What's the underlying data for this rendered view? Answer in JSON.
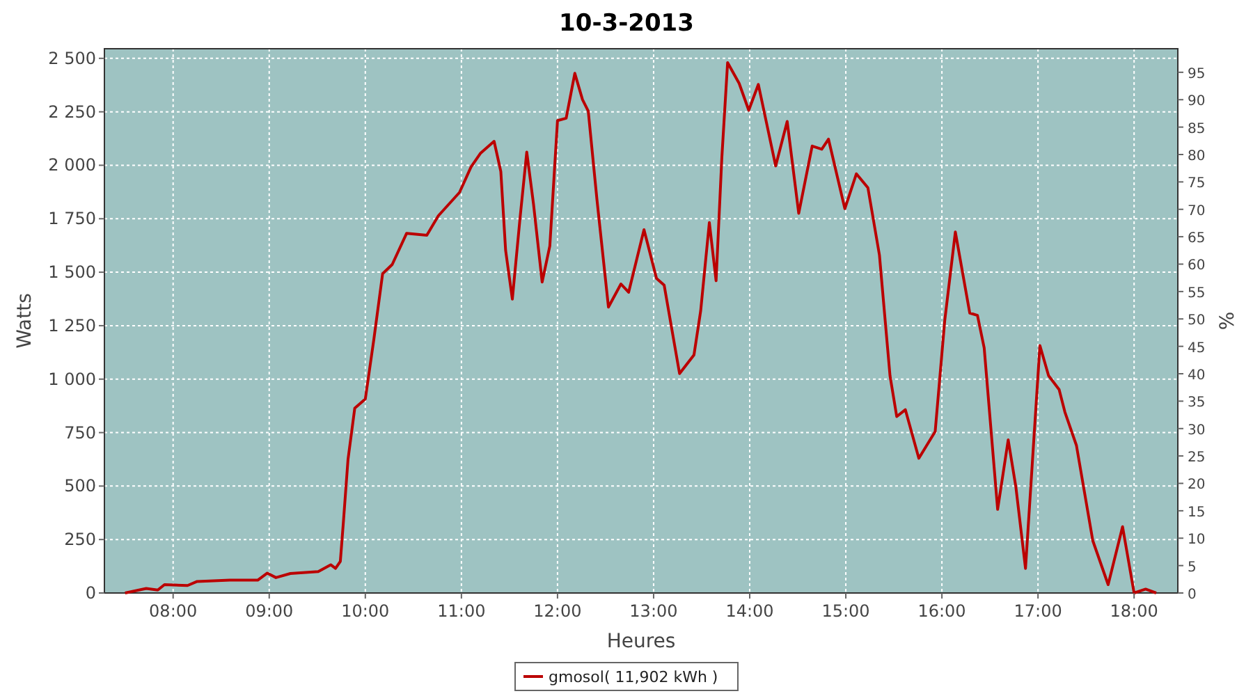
{
  "chart_data": {
    "type": "line",
    "title": "10-3-2013",
    "xlabel": "Heures",
    "ylabel": "Watts",
    "y2label": "%",
    "xlim": [
      7.285,
      18.455
    ],
    "xticks": [
      {
        "value": 8,
        "label": "08:00"
      },
      {
        "value": 9,
        "label": "09:00"
      },
      {
        "value": 10,
        "label": "10:00"
      },
      {
        "value": 11,
        "label": "11:00"
      },
      {
        "value": 12,
        "label": "12:00"
      },
      {
        "value": 13,
        "label": "13:00"
      },
      {
        "value": 14,
        "label": "14:00"
      },
      {
        "value": 15,
        "label": "15:00"
      },
      {
        "value": 16,
        "label": "16:00"
      },
      {
        "value": 17,
        "label": "17:00"
      },
      {
        "value": 18,
        "label": "18:00"
      }
    ],
    "ylim": [
      0,
      2545
    ],
    "yticks": [
      0,
      250,
      500,
      750,
      {
        "value": 1000,
        "label": "1 000"
      },
      {
        "value": 1250,
        "label": "1 250"
      },
      {
        "value": 1500,
        "label": "1 500"
      },
      {
        "value": 1750,
        "label": "1 750"
      },
      {
        "value": 2000,
        "label": "2 000"
      },
      {
        "value": 2250,
        "label": "2 250"
      },
      {
        "value": 2500,
        "label": "2 500"
      }
    ],
    "y2lim": [
      0,
      99.3
    ],
    "y2ticks": [
      0,
      5,
      10,
      15,
      20,
      25,
      30,
      35,
      40,
      45,
      50,
      55,
      60,
      65,
      70,
      75,
      80,
      85,
      90,
      95
    ],
    "grid": true,
    "legend": "bottom",
    "marker": "none",
    "line_style": "solid",
    "series": [
      {
        "name": "gmosol( 11,902 kWh )",
        "color": "#bb0000",
        "x": [
          7.5,
          7.72,
          7.84,
          7.91,
          8.15,
          8.25,
          8.59,
          8.88,
          8.98,
          9.07,
          9.22,
          9.51,
          9.64,
          9.69,
          9.74,
          9.77,
          9.82,
          9.89,
          10.0,
          10.09,
          10.18,
          10.28,
          10.43,
          10.64,
          10.76,
          10.98,
          11.1,
          11.2,
          11.34,
          11.41,
          11.46,
          11.53,
          11.61,
          11.68,
          11.75,
          11.84,
          11.92,
          12.0,
          12.09,
          12.18,
          12.26,
          12.32,
          12.41,
          12.53,
          12.66,
          12.74,
          12.9,
          13.03,
          13.11,
          13.27,
          13.42,
          13.49,
          13.58,
          13.65,
          13.71,
          13.77,
          13.89,
          13.99,
          14.09,
          14.27,
          14.39,
          14.51,
          14.65,
          14.75,
          14.82,
          14.99,
          15.11,
          15.23,
          15.35,
          15.46,
          15.53,
          15.62,
          15.76,
          15.93,
          16.03,
          16.14,
          16.29,
          16.37,
          16.44,
          16.58,
          16.69,
          16.77,
          16.87,
          17.02,
          17.11,
          17.22,
          17.28,
          17.4,
          17.57,
          17.73,
          17.88,
          18.0,
          18.12,
          18.23
        ],
        "values": [
          0,
          21,
          14,
          39,
          35,
          54,
          60,
          60,
          93,
          72,
          91,
          100,
          132,
          115,
          148,
          321,
          625,
          864,
          907,
          1190,
          1493,
          1536,
          1682,
          1673,
          1764,
          1873,
          1992,
          2057,
          2112,
          1971,
          1602,
          1374,
          1753,
          2062,
          1819,
          1454,
          1623,
          2209,
          2220,
          2430,
          2307,
          2253,
          1841,
          1337,
          1445,
          1406,
          1699,
          1471,
          1439,
          1026,
          1113,
          1320,
          1732,
          1460,
          2036,
          2480,
          2383,
          2257,
          2378,
          1997,
          2205,
          1775,
          2090,
          2075,
          2122,
          1797,
          1960,
          1895,
          1580,
          1016,
          825,
          857,
          630,
          755,
          1276,
          1688,
          1309,
          1298,
          1146,
          391,
          716,
          495,
          115,
          1157,
          1016,
          951,
          846,
          690,
          245,
          39,
          310,
          0,
          18,
          0
        ]
      }
    ]
  }
}
